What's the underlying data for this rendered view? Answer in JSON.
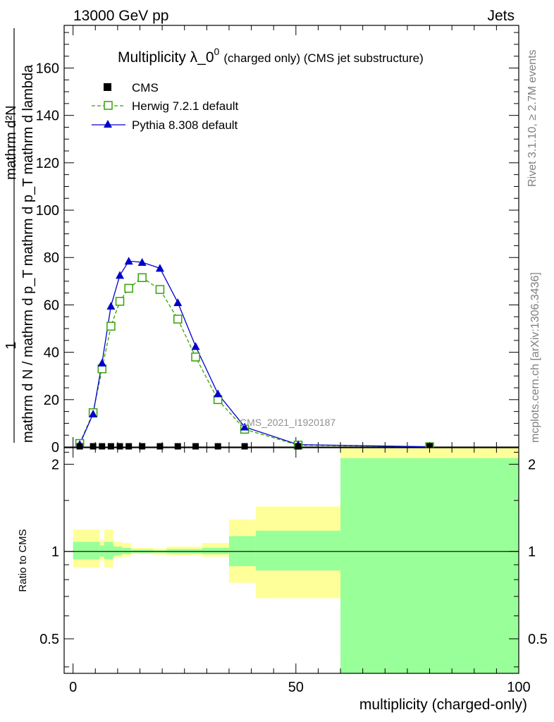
{
  "header": {
    "beam": "13000 GeV pp",
    "process": "Jets"
  },
  "side_labels": {
    "rivet": "Rivet 3.1.10, ≥ 2.7M events",
    "source": "mcplots.cern.ch [arXiv:1306.3436]"
  },
  "colors": {
    "cms": "#000000",
    "herwig": "#33a300",
    "pythia": "#0000cc",
    "band_outer": "#ffff99",
    "band_inner": "#99ff99"
  },
  "chart_data": [
    {
      "type": "line",
      "panel": "main",
      "title": "Multiplicity λ_0",
      "title_sup": "0",
      "title_suffix": "(charged only) (CMS jet substructure)",
      "analysis_tag": "CMS_2021_I1920187",
      "ylabel_numerator": "1",
      "ylabel_denominator": "mathrm d N / mathrm d p_T mathrm d p_T mathrm d lambda",
      "ylabel_numerator_top": "mathrm d²N",
      "xlim": [
        -2,
        100
      ],
      "ylim": [
        0,
        178
      ],
      "yticks": [
        0,
        20,
        40,
        60,
        80,
        100,
        120,
        140,
        160
      ],
      "ytick_labels": [
        "0",
        "20",
        "40",
        "60",
        "80",
        "100",
        "120",
        "140",
        "160"
      ],
      "legend": [
        "CMS",
        "Herwig 7.2.1 default",
        "Pythia 8.308 default"
      ],
      "legend_position": "top-left",
      "series": [
        {
          "name": "CMS",
          "marker": "filled-square",
          "x": [
            1.5,
            4.5,
            6.5,
            8.5,
            10.5,
            12.5,
            15.5,
            19.5,
            23.5,
            27.5,
            32.5,
            38.5,
            50.5,
            80
          ],
          "y": [
            0.3,
            0.3,
            0.3,
            0.3,
            0.3,
            0.3,
            0.3,
            0.3,
            0.3,
            0.3,
            0.3,
            0.3,
            0.3,
            0.3
          ]
        },
        {
          "name": "Herwig 7.2.1 default",
          "marker": "open-square",
          "line": "dashed",
          "x": [
            1.5,
            4.5,
            6.5,
            8.5,
            10.5,
            12.5,
            15.5,
            19.5,
            23.5,
            27.5,
            32.5,
            38.5,
            50.5,
            80
          ],
          "y": [
            1.5,
            14.5,
            33,
            51,
            61.5,
            67,
            71.5,
            66.5,
            54,
            38,
            20,
            7.5,
            0.8,
            0.1
          ]
        },
        {
          "name": "Pythia 8.308 default",
          "marker": "filled-triangle",
          "line": "solid",
          "x": [
            1.5,
            4.5,
            6.5,
            8.5,
            10.5,
            12.5,
            15.5,
            19.5,
            23.5,
            27.5,
            32.5,
            38.5,
            50.5,
            80
          ],
          "y": [
            1.2,
            14,
            35.5,
            59.5,
            72.5,
            78.5,
            78,
            75.5,
            61,
            42.5,
            22.5,
            8.5,
            1.0,
            0.1
          ]
        }
      ]
    },
    {
      "type": "area",
      "panel": "ratio",
      "ylabel": "Ratio to CMS",
      "xlabel": "multiplicity (charged-only)",
      "xlim": [
        -2,
        100
      ],
      "ylim": [
        0.38,
        2.28
      ],
      "yscale": "log",
      "yticks": [
        0.5,
        1,
        2
      ],
      "ytick_labels": [
        "0.5",
        "1",
        "2"
      ],
      "xticks": [
        0,
        50,
        100
      ],
      "xtick_labels": [
        "0",
        "50",
        "100"
      ],
      "bins": [
        {
          "lo": 0,
          "hi": 3,
          "outer": [
            0.88,
            1.19
          ],
          "inner": [
            0.94,
            1.08
          ]
        },
        {
          "lo": 3,
          "hi": 6,
          "outer": [
            0.88,
            1.19
          ],
          "inner": [
            0.94,
            1.08
          ]
        },
        {
          "lo": 6,
          "hi": 7,
          "outer": [
            0.93,
            1.09
          ],
          "inner": [
            0.96,
            1.05
          ]
        },
        {
          "lo": 7,
          "hi": 9,
          "outer": [
            0.88,
            1.19
          ],
          "inner": [
            0.94,
            1.08
          ]
        },
        {
          "lo": 9,
          "hi": 11,
          "outer": [
            0.95,
            1.08
          ],
          "inner": [
            0.97,
            1.04
          ]
        },
        {
          "lo": 11,
          "hi": 13,
          "outer": [
            0.96,
            1.07
          ],
          "inner": [
            0.98,
            1.03
          ]
        },
        {
          "lo": 13,
          "hi": 18,
          "outer": [
            0.98,
            1.03
          ],
          "inner": [
            0.99,
            1.015
          ]
        },
        {
          "lo": 18,
          "hi": 21,
          "outer": [
            0.975,
            1.025
          ],
          "inner": [
            0.99,
            1.01
          ]
        },
        {
          "lo": 21,
          "hi": 29,
          "outer": [
            0.97,
            1.04
          ],
          "inner": [
            0.985,
            1.02
          ]
        },
        {
          "lo": 29,
          "hi": 35,
          "outer": [
            0.96,
            1.07
          ],
          "inner": [
            0.98,
            1.03
          ]
        },
        {
          "lo": 35,
          "hi": 41,
          "outer": [
            0.78,
            1.29
          ],
          "inner": [
            0.89,
            1.13
          ]
        },
        {
          "lo": 41,
          "hi": 60,
          "outer": [
            0.69,
            1.43
          ],
          "inner": [
            0.86,
            1.18
          ]
        },
        {
          "lo": 60,
          "hi": 100,
          "outer": [
            0.38,
            2.28
          ],
          "inner": [
            0.38,
            2.1
          ]
        }
      ]
    }
  ]
}
